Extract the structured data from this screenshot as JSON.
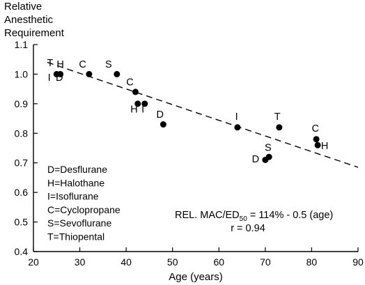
{
  "chart_data": {
    "type": "scatter",
    "title": "",
    "ylabel_lines": [
      "Relative",
      "Anesthetic",
      "Requirement"
    ],
    "xlabel": "Age (years)",
    "xlim": [
      20,
      90
    ],
    "ylim": [
      0.4,
      1.1
    ],
    "x_ticks": [
      "20",
      "30",
      "40",
      "50",
      "60",
      "70",
      "80",
      "90"
    ],
    "y_ticks": [
      "0.4",
      "0.5",
      "0.6",
      "0.7",
      "0.8",
      "0.9",
      "1.0",
      "1.1"
    ],
    "x_tick_values": [
      20,
      30,
      40,
      50,
      60,
      70,
      80,
      90
    ],
    "y_tick_values": [
      0.4,
      0.5,
      0.6,
      0.7,
      0.8,
      0.9,
      1.0,
      1.1
    ],
    "points": [
      {
        "x": 25.0,
        "y": 1.0
      },
      {
        "x": 25.8,
        "y": 1.0
      },
      {
        "x": 32.0,
        "y": 1.0
      },
      {
        "x": 38.0,
        "y": 1.0
      },
      {
        "x": 42.0,
        "y": 0.94
      },
      {
        "x": 42.5,
        "y": 0.9
      },
      {
        "x": 44.0,
        "y": 0.9
      },
      {
        "x": 48.0,
        "y": 0.83
      },
      {
        "x": 64.0,
        "y": 0.82
      },
      {
        "x": 73.0,
        "y": 0.82
      },
      {
        "x": 70.0,
        "y": 0.71
      },
      {
        "x": 70.8,
        "y": 0.72
      },
      {
        "x": 81.0,
        "y": 0.78
      },
      {
        "x": 81.3,
        "y": 0.76
      }
    ],
    "point_labels": [
      {
        "text": "T",
        "x": 23.6,
        "y": 1.027
      },
      {
        "text": "H",
        "x": 25.8,
        "y": 1.022
      },
      {
        "text": "I",
        "x": 23.4,
        "y": 0.977
      },
      {
        "text": "D",
        "x": 25.6,
        "y": 0.977
      },
      {
        "text": "C",
        "x": 30.6,
        "y": 1.022
      },
      {
        "text": "S",
        "x": 36.2,
        "y": 1.022
      },
      {
        "text": "C",
        "x": 40.8,
        "y": 0.962
      },
      {
        "text": "H",
        "x": 41.7,
        "y": 0.87
      },
      {
        "text": "I",
        "x": 43.6,
        "y": 0.87
      },
      {
        "text": "D",
        "x": 47.3,
        "y": 0.853
      },
      {
        "text": "I",
        "x": 63.8,
        "y": 0.845
      },
      {
        "text": "T",
        "x": 72.6,
        "y": 0.845
      },
      {
        "text": "S",
        "x": 70.6,
        "y": 0.74
      },
      {
        "text": "D",
        "x": 67.9,
        "y": 0.702
      },
      {
        "text": "C",
        "x": 80.8,
        "y": 0.805
      },
      {
        "text": "H",
        "x": 82.8,
        "y": 0.746
      }
    ],
    "regression": {
      "x": [
        23,
        90
      ],
      "y": [
        1.04,
        0.685
      ],
      "style": "dashed"
    },
    "legend": [
      "D=Desflurane",
      "H=Halothane",
      "I=Isoflurane",
      "C=Cyclopropane",
      "S=Sevoflurane",
      "T=Thiopental"
    ],
    "equation": {
      "prefix": "REL. MAC/ED",
      "subscript": "50",
      "suffix": " = 114% - 0.5 (age)"
    },
    "r_text": "r = 0.94"
  }
}
